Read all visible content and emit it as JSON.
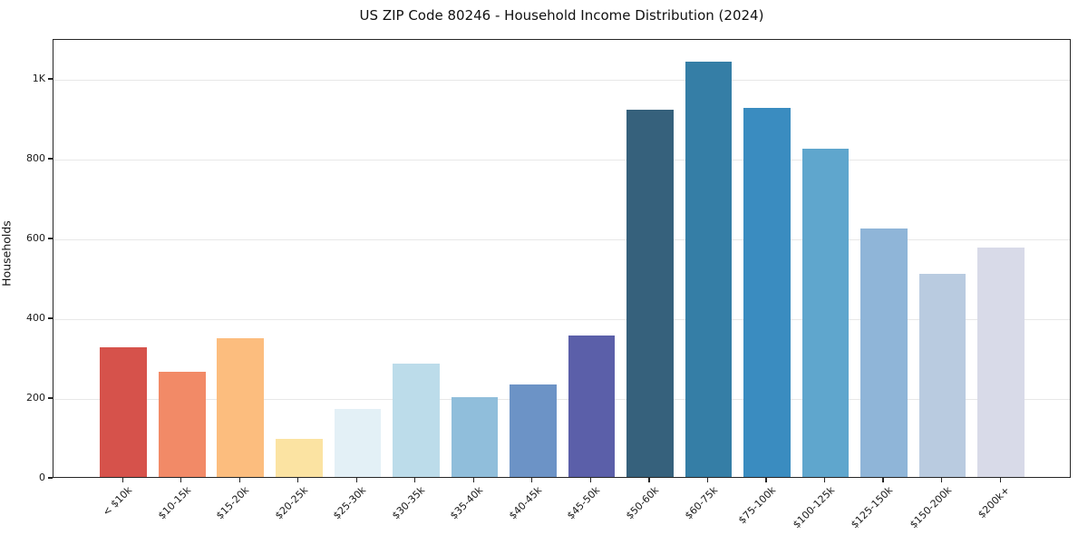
{
  "figure": {
    "title": "US ZIP Code 80246 - Household Income Distribution (2024)"
  },
  "chart_data": {
    "type": "bar",
    "title": "US ZIP Code 80246 - Household Income Distribution (2024)",
    "xlabel": "",
    "ylabel": "Households",
    "categories": [
      "< $10k",
      "$10-15k",
      "$15-20k",
      "$20-25k",
      "$25-30k",
      "$30-35k",
      "$35-40k",
      "$40-45k",
      "$45-50k",
      "$50-60k",
      "$60-75k",
      "$75-100k",
      "$100-125k",
      "$125-150k",
      "$150-200k",
      "$200k+"
    ],
    "values": [
      325,
      263,
      347,
      96,
      170,
      284,
      200,
      231,
      354,
      920,
      1040,
      926,
      822,
      623,
      508,
      574
    ],
    "bar_colors": [
      "#d6524b",
      "#f28a67",
      "#fcbd7e",
      "#fbe3a2",
      "#e3f0f6",
      "#bcdcea",
      "#90bedb",
      "#6c93c6",
      "#5b5fa9",
      "#36617c",
      "#357ea6",
      "#3a8cc0",
      "#5fa6cd",
      "#8fb5d8",
      "#b9cbe0",
      "#d8dae8"
    ],
    "ylim": [
      0,
      1100
    ],
    "yticks": [
      {
        "value": 0,
        "label": "0"
      },
      {
        "value": 200,
        "label": "200"
      },
      {
        "value": 400,
        "label": "400"
      },
      {
        "value": 600,
        "label": "600"
      },
      {
        "value": 800,
        "label": "800"
      },
      {
        "value": 1000,
        "label": "1K"
      }
    ],
    "grid": "horizontal",
    "legend": "none",
    "background_color": "#ffffff",
    "gridline_color": "#e8e8e8",
    "spine_color": "#262626"
  }
}
